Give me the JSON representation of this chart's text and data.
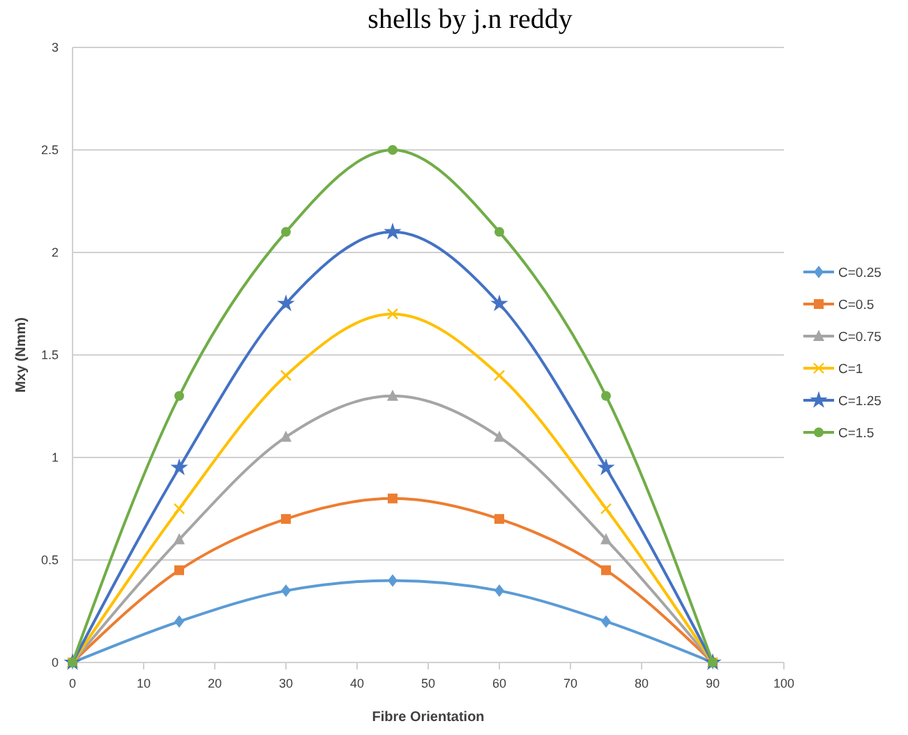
{
  "chart_data": {
    "type": "line",
    "title": "shells by j.n reddy",
    "xlabel": "Fibre Orientation",
    "ylabel": "Mxy (Nmm)",
    "x": [
      0,
      15,
      30,
      45,
      60,
      75,
      90
    ],
    "xlim": [
      0,
      100
    ],
    "xticks": [
      0,
      10,
      20,
      30,
      40,
      50,
      60,
      70,
      80,
      90,
      100
    ],
    "ylim": [
      0,
      3
    ],
    "yticks": [
      0,
      0.5,
      1,
      1.5,
      2,
      2.5,
      3
    ],
    "grid": "y",
    "legend": "right",
    "series": [
      {
        "name": "C=0.25",
        "color": "#5b9bd5",
        "marker": "diamond",
        "values": [
          0,
          0.2,
          0.35,
          0.4,
          0.35,
          0.2,
          0
        ]
      },
      {
        "name": "C=0.5",
        "color": "#ed7d31",
        "marker": "square",
        "values": [
          0,
          0.45,
          0.7,
          0.8,
          0.7,
          0.45,
          0
        ]
      },
      {
        "name": "C=0.75",
        "color": "#a5a5a5",
        "marker": "triangle",
        "values": [
          0,
          0.6,
          1.1,
          1.3,
          1.1,
          0.6,
          0
        ]
      },
      {
        "name": "C=1",
        "color": "#ffc000",
        "marker": "cross",
        "values": [
          0,
          0.75,
          1.4,
          1.7,
          1.4,
          0.75,
          0
        ]
      },
      {
        "name": "C=1.25",
        "color": "#4472c4",
        "marker": "star",
        "values": [
          0,
          0.95,
          1.75,
          2.1,
          1.75,
          0.95,
          0
        ]
      },
      {
        "name": "C=1.5",
        "color": "#70ad47",
        "marker": "circle",
        "values": [
          0,
          1.3,
          2.1,
          2.5,
          2.1,
          1.3,
          0
        ]
      }
    ]
  }
}
